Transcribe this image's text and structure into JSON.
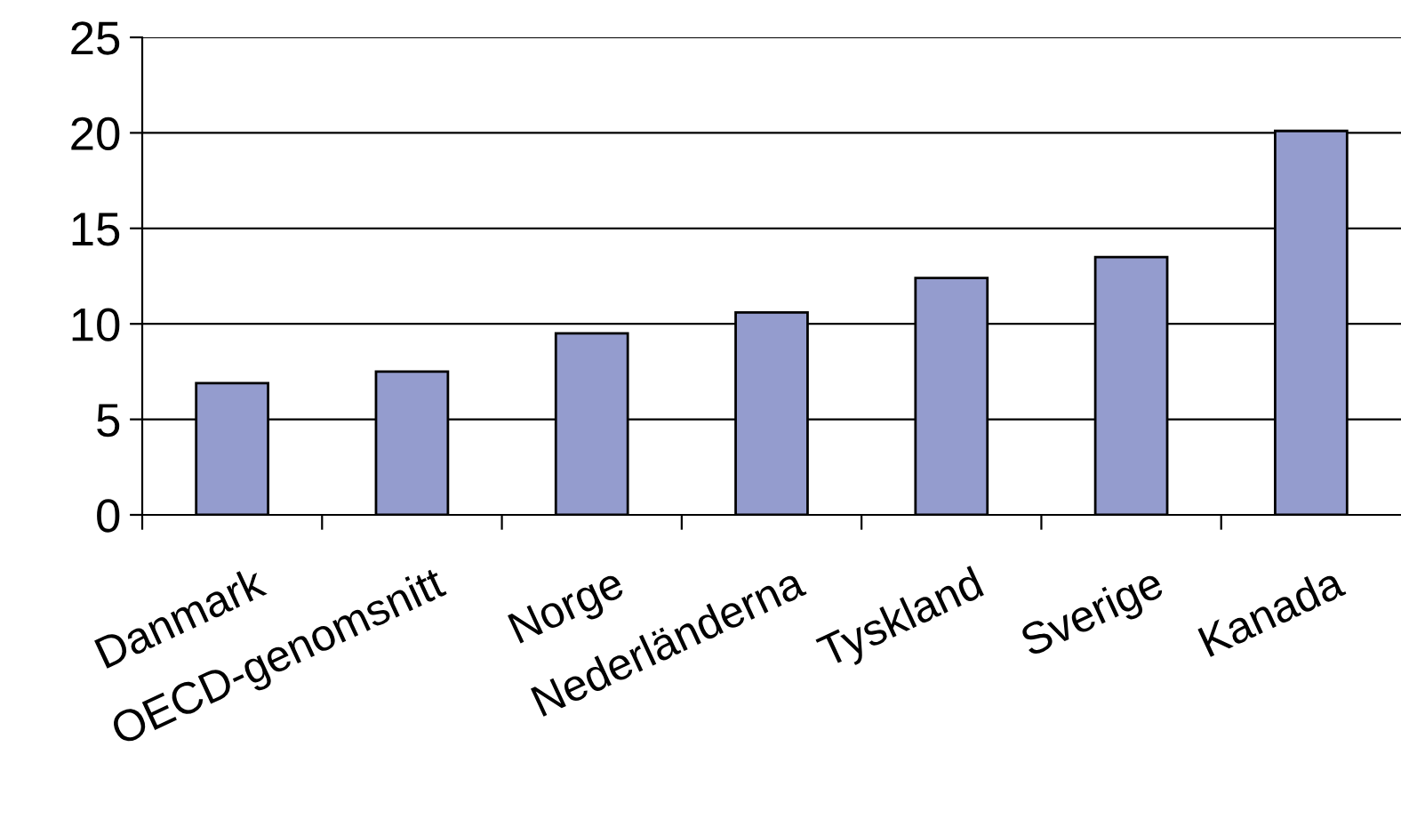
{
  "chart_data": {
    "type": "bar",
    "categories": [
      "Danmark",
      "OECD-genomsnitt",
      "Norge",
      "Nederländerna",
      "Tyskland",
      "Sverige",
      "Kanada"
    ],
    "values": [
      6.9,
      7.5,
      9.5,
      10.6,
      12.4,
      13.5,
      20.1
    ],
    "color": "#949cce",
    "ylim": [
      0,
      25
    ],
    "yticks": [
      0,
      5,
      10,
      15,
      20,
      25
    ],
    "grid": "y",
    "legend": false
  }
}
